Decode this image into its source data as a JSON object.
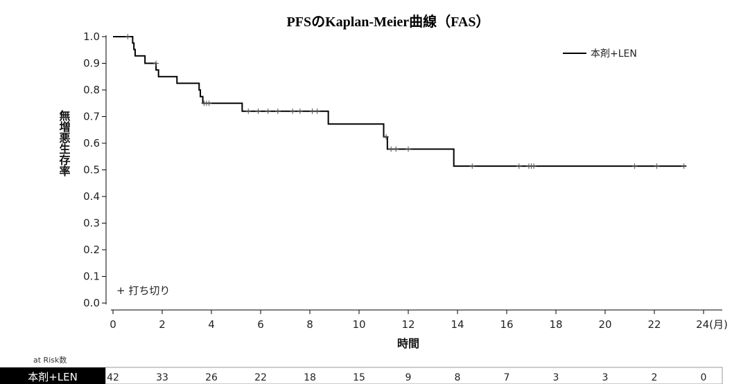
{
  "chart_data": {
    "type": "line",
    "title": "PFSのKaplan-Meier曲線（FAS）",
    "xlabel": "時間",
    "ylabel": "無増悪生存率",
    "x_unit": "24(月)",
    "xlim": [
      0,
      24
    ],
    "ylim": [
      0.0,
      1.0
    ],
    "x_ticks": [
      "0",
      "2",
      "4",
      "6",
      "8",
      "10",
      "12",
      "14",
      "16",
      "18",
      "20",
      "22"
    ],
    "y_ticks": [
      "0.0",
      "0.1",
      "0.2",
      "0.3",
      "0.4",
      "0.5",
      "0.6",
      "0.7",
      "0.8",
      "0.9",
      "1.0"
    ],
    "grid": false,
    "legend_position": "top-right",
    "censor_legend": "+ 打ち切り",
    "series": [
      {
        "name": "本剤+LEN",
        "color": "#000000",
        "steps": [
          [
            0,
            1.0
          ],
          [
            0.8,
            0.976
          ],
          [
            0.85,
            0.952
          ],
          [
            0.9,
            0.928
          ],
          [
            1.3,
            0.9
          ],
          [
            1.75,
            0.875
          ],
          [
            1.85,
            0.85
          ],
          [
            2.6,
            0.825
          ],
          [
            3.5,
            0.8
          ],
          [
            3.55,
            0.775
          ],
          [
            3.65,
            0.75
          ],
          [
            5.25,
            0.72
          ],
          [
            8.75,
            0.672
          ],
          [
            11.0,
            0.624
          ],
          [
            11.15,
            0.578
          ],
          [
            13.85,
            0.514
          ]
        ],
        "end_x": 23.3,
        "censored": [
          [
            0.6,
            1.0
          ],
          [
            1.75,
            0.9
          ],
          [
            3.7,
            0.75
          ],
          [
            3.8,
            0.75
          ],
          [
            3.9,
            0.75
          ],
          [
            5.5,
            0.72
          ],
          [
            5.9,
            0.72
          ],
          [
            6.3,
            0.72
          ],
          [
            6.7,
            0.72
          ],
          [
            7.3,
            0.72
          ],
          [
            7.6,
            0.72
          ],
          [
            8.1,
            0.72
          ],
          [
            8.3,
            0.72
          ],
          [
            11.1,
            0.624
          ],
          [
            11.3,
            0.578
          ],
          [
            11.5,
            0.578
          ],
          [
            12.0,
            0.578
          ],
          [
            14.6,
            0.514
          ],
          [
            16.5,
            0.514
          ],
          [
            16.9,
            0.514
          ],
          [
            17.0,
            0.514
          ],
          [
            17.1,
            0.514
          ],
          [
            21.2,
            0.514
          ],
          [
            22.1,
            0.514
          ],
          [
            23.2,
            0.514
          ]
        ]
      }
    ],
    "risk_table": {
      "header": "at Risk数",
      "series_label": "本剤+LEN",
      "times": [
        0,
        2,
        4,
        6,
        8,
        10,
        12,
        14,
        16,
        18,
        20,
        22,
        24
      ],
      "values": [
        "42",
        "33",
        "26",
        "22",
        "18",
        "15",
        "9",
        "8",
        "7",
        "3",
        "3",
        "2",
        "0"
      ]
    }
  }
}
